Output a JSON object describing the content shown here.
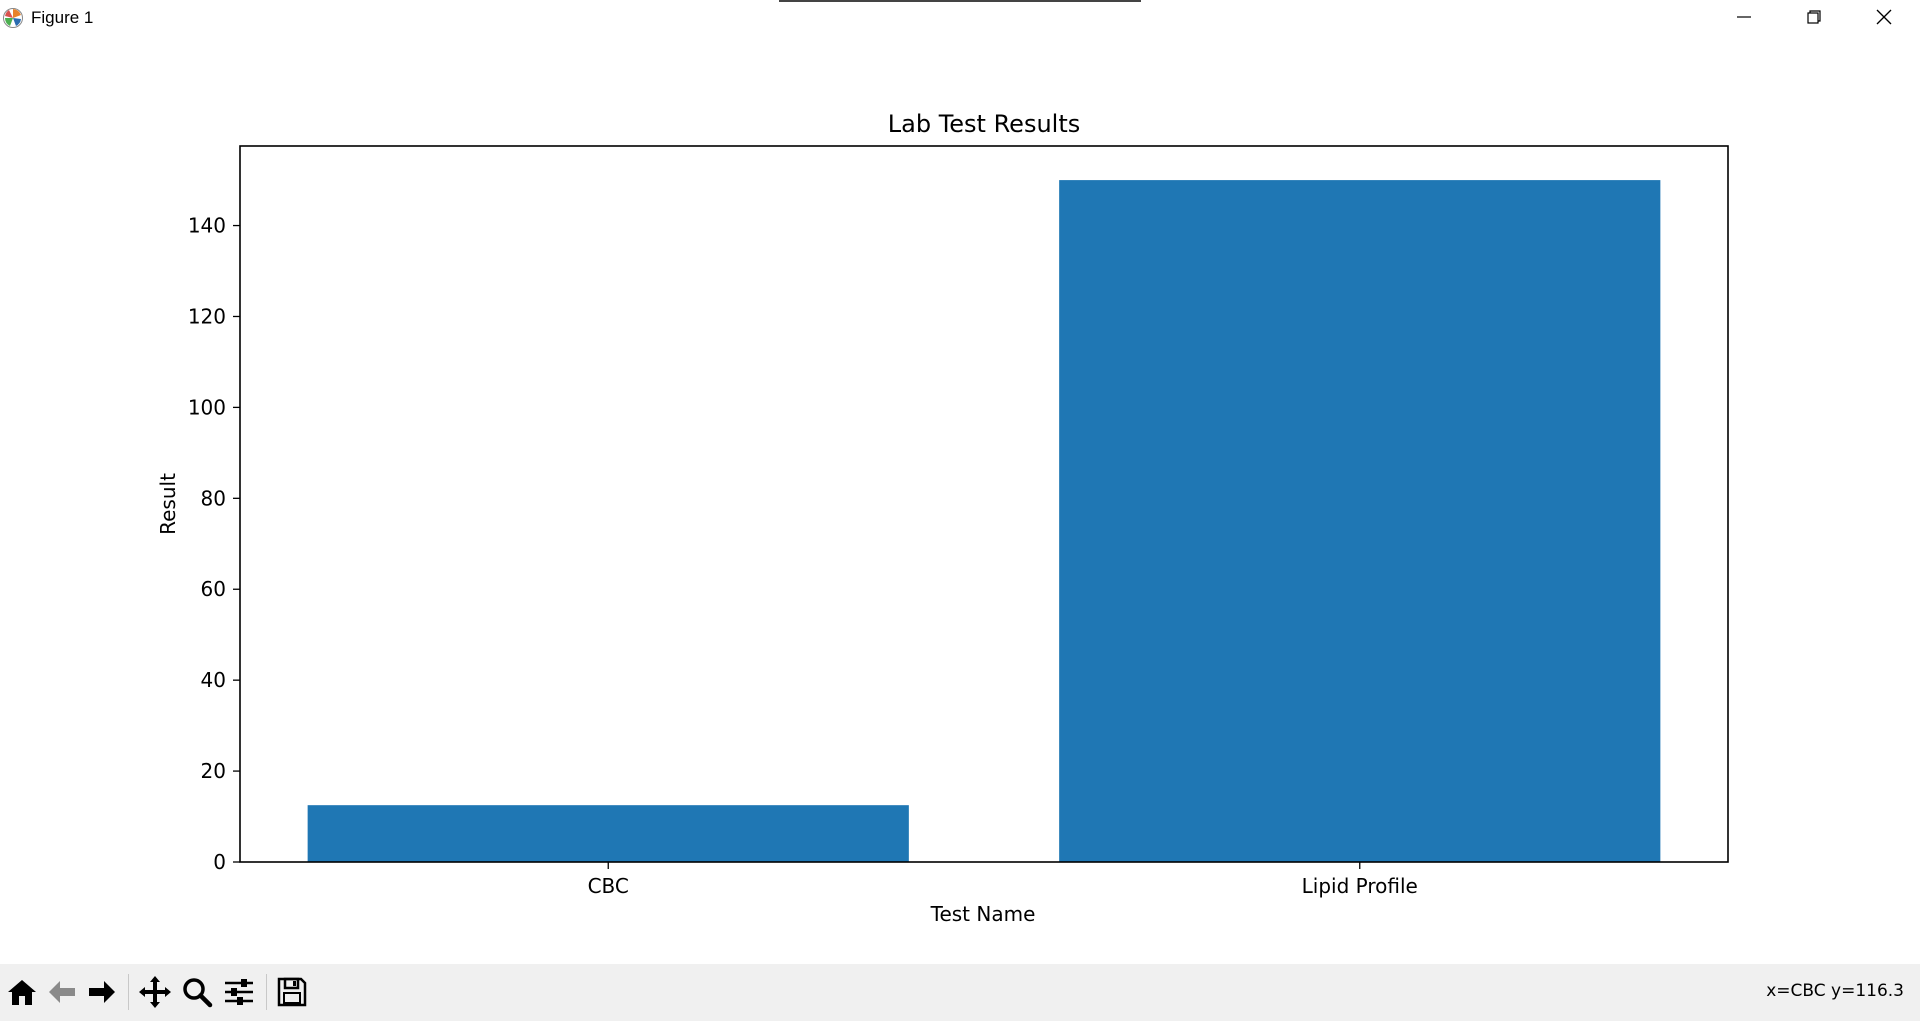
{
  "window": {
    "title": "Figure 1",
    "app_icon": "matplotlib-icon",
    "controls": [
      "minimize-icon",
      "maximize-icon",
      "close-icon"
    ]
  },
  "toolbar": {
    "buttons": [
      "home-icon",
      "back-icon",
      "forward-icon",
      "pan-icon",
      "zoom-icon",
      "configure-subplots-icon",
      "save-icon"
    ],
    "coords_text": "x=CBC y=116.3"
  },
  "colors": {
    "bar": "#1f77b4",
    "axes": "#000000",
    "toolbar_bg": "#f0f0f0"
  },
  "chart_data": {
    "type": "bar",
    "title": "Lab Test Results",
    "xlabel": "Test Name",
    "ylabel": "Result",
    "categories": [
      "CBC",
      "Lipid Profile"
    ],
    "values": [
      12.5,
      150
    ],
    "ylim": [
      0,
      157.5
    ],
    "yticks": [
      0,
      20,
      40,
      60,
      80,
      100,
      120,
      140
    ],
    "grid": false,
    "legend": "none"
  }
}
